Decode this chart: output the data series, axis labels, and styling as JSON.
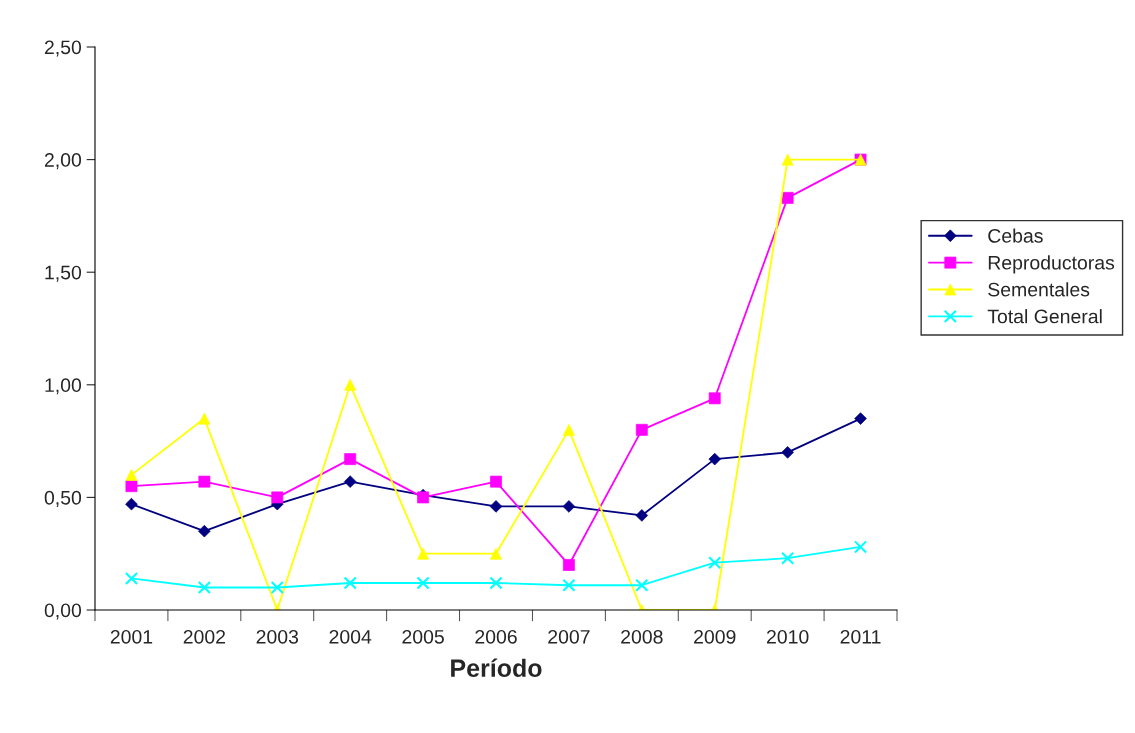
{
  "chart_data": {
    "type": "line",
    "xlabel": "Período",
    "categories": [
      "2001",
      "2002",
      "2003",
      "2004",
      "2005",
      "2006",
      "2007",
      "2008",
      "2009",
      "2010",
      "2011"
    ],
    "series": [
      {
        "name": "Cebas",
        "color": "#000080",
        "marker": "diamond",
        "values": [
          0.47,
          0.35,
          0.47,
          0.57,
          0.51,
          0.46,
          0.46,
          0.42,
          0.67,
          0.7,
          0.85
        ]
      },
      {
        "name": "Reproductoras",
        "color": "#ff00ff",
        "marker": "square",
        "values": [
          0.55,
          0.57,
          0.5,
          0.67,
          0.5,
          0.57,
          0.2,
          0.8,
          0.94,
          1.83,
          2.0
        ]
      },
      {
        "name": "Sementales",
        "color": "#ffff00",
        "marker": "triangle",
        "values": [
          0.6,
          0.85,
          0.0,
          1.0,
          0.25,
          0.25,
          0.8,
          0.0,
          0.0,
          2.0,
          2.0
        ]
      },
      {
        "name": "Total General",
        "color": "#00ffff",
        "marker": "cross",
        "values": [
          0.14,
          0.1,
          0.1,
          0.12,
          0.12,
          0.12,
          0.11,
          0.11,
          0.21,
          0.23,
          0.28
        ]
      }
    ],
    "ylim": [
      0,
      2.5
    ],
    "yticks": [
      {
        "value": 0,
        "label": "0,00"
      },
      {
        "value": 0.5,
        "label": "0,50"
      },
      {
        "value": 1,
        "label": "1,00"
      },
      {
        "value": 1.5,
        "label": "1,50"
      },
      {
        "value": 2,
        "label": "2,00"
      },
      {
        "value": 2.5,
        "label": "2,50"
      }
    ],
    "grid": false,
    "legend": "right",
    "line_style": "solid"
  }
}
